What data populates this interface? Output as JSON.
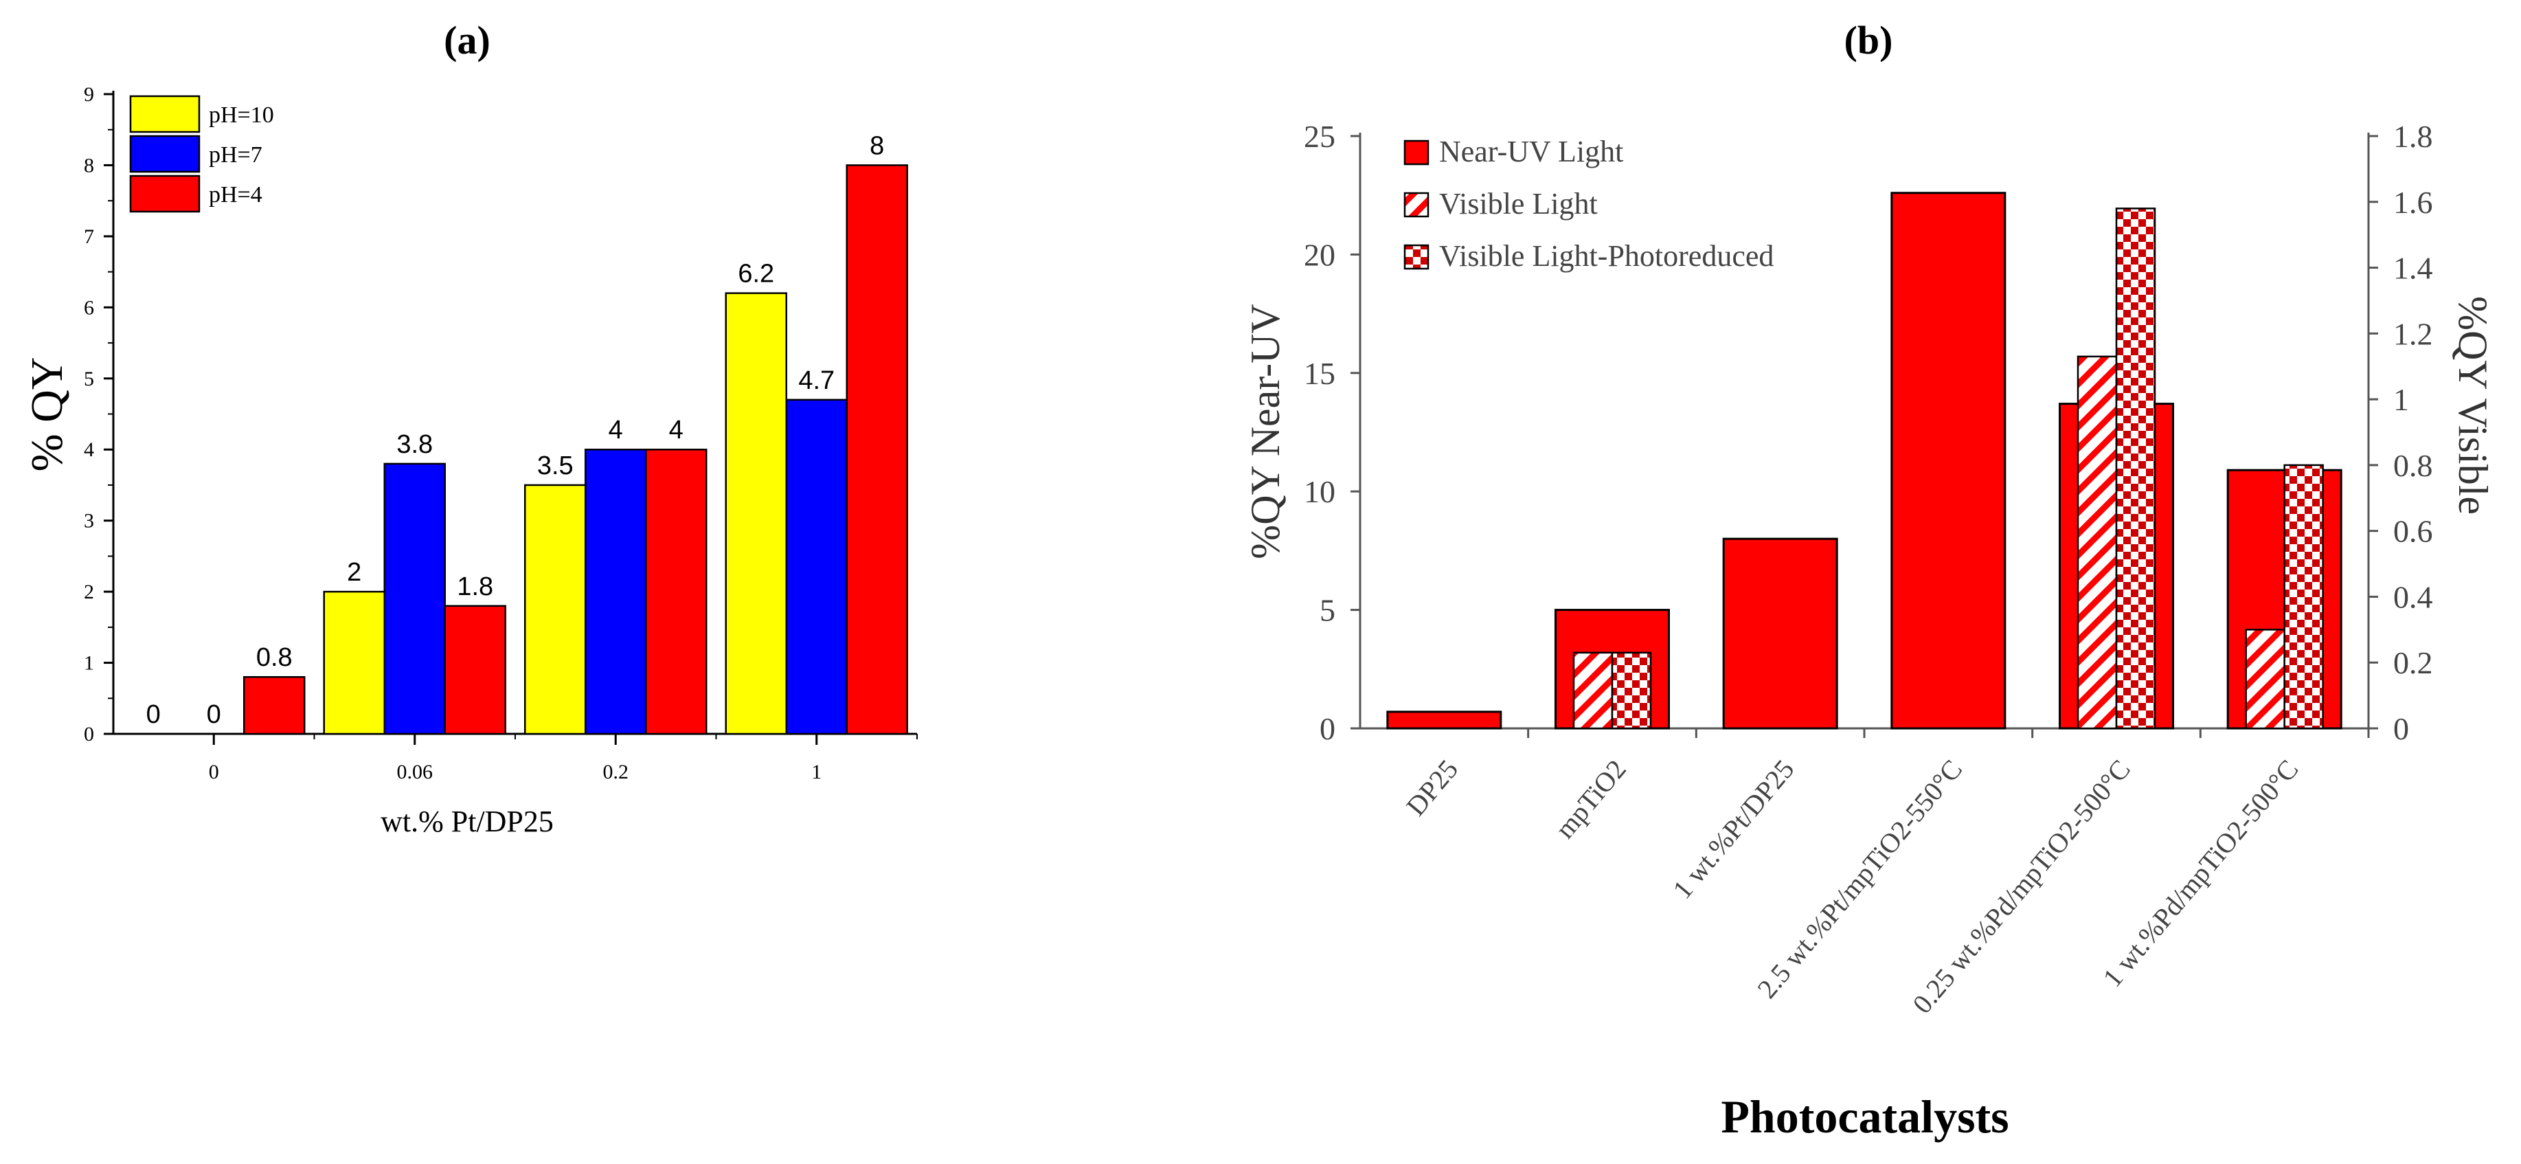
{
  "chart_data": [
    {
      "panel": "(a)",
      "type": "bar",
      "title": "(a)",
      "xlabel": "wt.% Pt/DP25",
      "ylabel": "% QY",
      "categories": [
        "0",
        "0.06",
        "0.2",
        "1"
      ],
      "ylim": [
        0,
        9
      ],
      "yticks": [
        "0",
        "1",
        "2",
        "3",
        "4",
        "5",
        "6",
        "7",
        "8",
        "9"
      ],
      "series": [
        {
          "name": "pH=10",
          "color": "#ffff00",
          "values": [
            0,
            2,
            3.5,
            6.2
          ],
          "labels": [
            "0",
            "2",
            "3.5",
            "6.2"
          ]
        },
        {
          "name": "pH=7",
          "color": "#0000ff",
          "values": [
            0,
            3.8,
            4,
            4.7
          ],
          "labels": [
            "0",
            "3.8",
            "4",
            "4.7"
          ]
        },
        {
          "name": "pH=4",
          "color": "#ff0000",
          "values": [
            0.8,
            1.8,
            4,
            8
          ],
          "labels": [
            "0.8",
            "1.8",
            "4",
            "8"
          ]
        }
      ],
      "legend_position": "top-left"
    },
    {
      "panel": "(b)",
      "type": "bar",
      "title": "(b)",
      "xlabel": "Photocatalysts",
      "ylabel": "%QY Near-UV",
      "y2label": "%QY Visible",
      "categories": [
        "DP25",
        "mpTiO2",
        "1 wt.%Pt/DP25",
        "2.5 wt.%Pt/mpTiO2-550°C",
        "0.25 wt.%Pd/mpTiO2-500°C",
        "1 wt.%Pd/mpTiO2-500°C"
      ],
      "ylim": [
        0,
        25
      ],
      "yticks": [
        "0",
        "5",
        "10",
        "15",
        "20",
        "25"
      ],
      "y2lim": [
        0,
        1.8
      ],
      "y2ticks": [
        "0",
        "0.2",
        "0.4",
        "0.6",
        "0.8",
        "1",
        "1.2",
        "1.4",
        "1.6",
        "1.8"
      ],
      "series": [
        {
          "name": "Near-UV Light",
          "axis": "left",
          "pattern": "solid",
          "values": [
            0.7,
            5,
            8,
            22.6,
            13.7,
            10.9
          ]
        },
        {
          "name": "Visible Light",
          "axis": "right",
          "pattern": "hatch",
          "values": [
            null,
            0.23,
            null,
            null,
            1.13,
            0.3
          ]
        },
        {
          "name": "Visible Light-Photoreduced",
          "axis": "right",
          "pattern": "checker",
          "values": [
            null,
            0.23,
            null,
            null,
            1.58,
            0.8
          ]
        }
      ],
      "legend_position": "top-left",
      "colors": {
        "bar": "#ff0000",
        "outline": "#000000",
        "axis": "#555555"
      }
    }
  ]
}
